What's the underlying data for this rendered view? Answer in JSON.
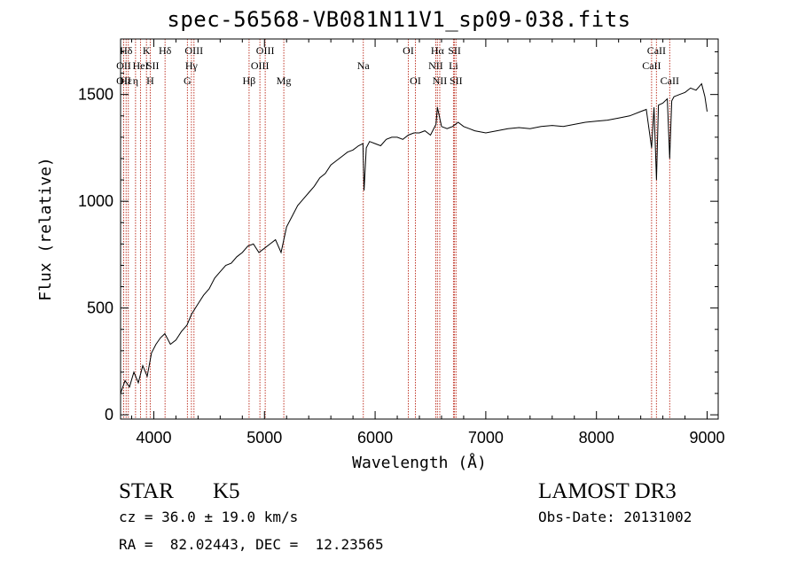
{
  "chart_data": {
    "type": "line",
    "title": "spec-56568-VB081N11V1_sp09-038.fits",
    "xlabel": "Wavelength (Å)",
    "ylabel": "Flux (relative)",
    "xlim": [
      3700,
      9100
    ],
    "ylim": [
      -20,
      1760
    ],
    "xticks": [
      4000,
      5000,
      6000,
      7000,
      8000,
      9000
    ],
    "yticks": [
      0,
      500,
      1000,
      1500
    ],
    "x_tick_labels": [
      "4000",
      "5000",
      "6000",
      "7000",
      "8000",
      "9000"
    ],
    "y_tick_labels": [
      "0",
      "500",
      "1000",
      "1500"
    ],
    "series": [
      {
        "name": "spectrum",
        "x": [
          3700,
          3740,
          3780,
          3820,
          3860,
          3900,
          3940,
          3980,
          4020,
          4060,
          4100,
          4150,
          4200,
          4250,
          4300,
          4340,
          4400,
          4450,
          4500,
          4550,
          4600,
          4650,
          4700,
          4750,
          4800,
          4850,
          4900,
          4950,
          5000,
          5050,
          5100,
          5150,
          5200,
          5250,
          5300,
          5350,
          5400,
          5450,
          5500,
          5550,
          5600,
          5650,
          5700,
          5750,
          5800,
          5850,
          5890,
          5900,
          5920,
          5950,
          6000,
          6050,
          6100,
          6150,
          6200,
          6250,
          6300,
          6350,
          6400,
          6450,
          6500,
          6550,
          6563,
          6600,
          6650,
          6700,
          6750,
          6800,
          6850,
          6900,
          7000,
          7100,
          7200,
          7300,
          7400,
          7500,
          7600,
          7700,
          7800,
          7900,
          8000,
          8100,
          8200,
          8300,
          8400,
          8450,
          8498,
          8520,
          8542,
          8560,
          8600,
          8640,
          8662,
          8680,
          8700,
          8750,
          8800,
          8850,
          8900,
          8950,
          8980,
          9000
        ],
        "y": [
          100,
          160,
          130,
          200,
          150,
          230,
          180,
          290,
          330,
          360,
          380,
          330,
          350,
          390,
          420,
          470,
          520,
          560,
          590,
          640,
          670,
          700,
          710,
          740,
          760,
          790,
          800,
          760,
          780,
          800,
          820,
          760,
          880,
          930,
          980,
          1010,
          1040,
          1070,
          1110,
          1130,
          1170,
          1190,
          1210,
          1230,
          1240,
          1260,
          1270,
          1050,
          1250,
          1280,
          1270,
          1260,
          1290,
          1300,
          1300,
          1290,
          1310,
          1320,
          1320,
          1330,
          1310,
          1360,
          1440,
          1350,
          1340,
          1350,
          1370,
          1350,
          1340,
          1330,
          1320,
          1330,
          1340,
          1345,
          1340,
          1350,
          1355,
          1350,
          1360,
          1370,
          1375,
          1380,
          1390,
          1400,
          1420,
          1430,
          1250,
          1440,
          1100,
          1450,
          1460,
          1480,
          1200,
          1470,
          1490,
          1500,
          1510,
          1530,
          1520,
          1550,
          1490,
          1420
        ]
      }
    ],
    "line_markers": [
      {
        "label": "Hδ",
        "x": 3750,
        "row": 1
      },
      {
        "label": "OII",
        "x": 3728,
        "row": 2
      },
      {
        "label": "OII",
        "x": 3728,
        "row": 3
      },
      {
        "label": "Hε",
        "x": 3750,
        "row": 3
      },
      {
        "label": "η",
        "x": 3835,
        "row": 3
      },
      {
        "label": "K",
        "x": 3934,
        "row": 1
      },
      {
        "label": "HeI",
        "x": 3880,
        "row": 2
      },
      {
        "label": "SII",
        "x": 3990,
        "row": 2
      },
      {
        "label": "H",
        "x": 3968,
        "row": 3
      },
      {
        "label": "Hδ",
        "x": 4102,
        "row": 1
      },
      {
        "label": "OIII",
        "x": 4363,
        "row": 1
      },
      {
        "label": "Hγ",
        "x": 4340,
        "row": 2
      },
      {
        "label": "G",
        "x": 4304,
        "row": 3
      },
      {
        "label": "OIII",
        "x": 5007,
        "row": 1
      },
      {
        "label": "OIII",
        "x": 4959,
        "row": 2
      },
      {
        "label": "Hβ",
        "x": 4861,
        "row": 3
      },
      {
        "label": "Mg",
        "x": 5175,
        "row": 3
      },
      {
        "label": "Na",
        "x": 5893,
        "row": 2
      },
      {
        "label": "OI",
        "x": 6300,
        "row": 1
      },
      {
        "label": "OI",
        "x": 6364,
        "row": 3
      },
      {
        "label": "Hα",
        "x": 6563,
        "row": 1
      },
      {
        "label": "SII",
        "x": 6717,
        "row": 1
      },
      {
        "label": "NII",
        "x": 6548,
        "row": 2
      },
      {
        "label": "Li",
        "x": 6708,
        "row": 2
      },
      {
        "label": "NII",
        "x": 6584,
        "row": 3
      },
      {
        "label": "SII",
        "x": 6731,
        "row": 3
      },
      {
        "label": "CaII",
        "x": 8542,
        "row": 1
      },
      {
        "label": "CaII",
        "x": 8498,
        "row": 2
      },
      {
        "label": "CaII",
        "x": 8662,
        "row": 3
      }
    ],
    "marker_lines_x": [
      3728,
      3750,
      3770,
      3835,
      3880,
      3934,
      3968,
      4102,
      4304,
      4340,
      4363,
      4861,
      4959,
      5007,
      5175,
      5893,
      6300,
      6364,
      6548,
      6563,
      6584,
      6708,
      6717,
      6731,
      8498,
      8542,
      8662
    ]
  },
  "info": {
    "class": "STAR",
    "subclass": "K5",
    "survey": "LAMOST DR3",
    "cz": "cz = 36.0 ± 19.0 km/s",
    "obs_date": "Obs-Date: 20131002",
    "coords": "RA =  82.02443, DEC =  12.23565"
  },
  "colors": {
    "spectrum": "#000000",
    "marker_line": "#c0392b",
    "axes": "#000000"
  }
}
